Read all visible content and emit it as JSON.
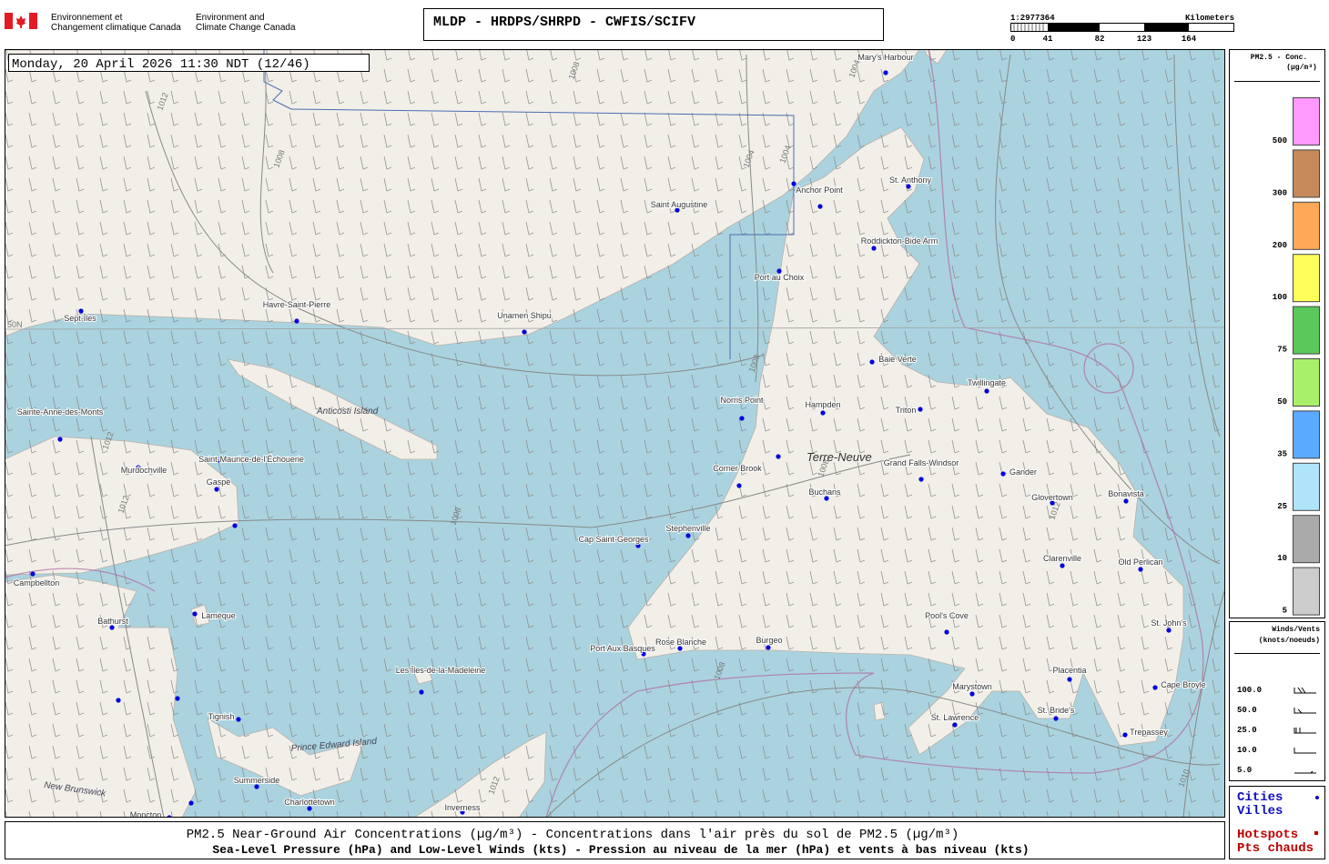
{
  "header": {
    "org_fr": [
      "Environnement et",
      "Changement climatique Canada"
    ],
    "org_en": [
      "Environment and",
      "Climate Change Canada"
    ],
    "title": "MLDP - HRDPS/SHRPD - CWFIS/SCIFV"
  },
  "scale": {
    "ratio": "1:2977364",
    "unit": "Kilometers",
    "ticks": [
      "0",
      "41",
      "82",
      "123",
      "164"
    ]
  },
  "map": {
    "date": "Monday, 20 April 2026 11:30 NDT (12/46)",
    "lat_label": "50N",
    "regions": [
      "Anticosti Island",
      "Terre-Neuve",
      "Prince Edward Island",
      "New Brunswick"
    ],
    "isobar_labels": [
      "1008",
      "1012",
      "1004",
      "1004",
      "1004",
      "1008",
      "1008",
      "1008",
      "1012",
      "1012",
      "1008",
      "1012",
      "1008",
      "1012",
      "1010"
    ],
    "cities": [
      "Sept-Îles",
      "Havre-Saint-Pierre",
      "Unamen Shipu",
      "Saint Augustine",
      "Anchor Point",
      "Mary's Harbour",
      "St. Anthony",
      "Roddickton-Bide Arm",
      "Port au Choix",
      "Baie Verte",
      "Twillingate",
      "Norris Point",
      "Hampden",
      "Triton",
      "Corner Brook",
      "Grand Falls-Windsor",
      "Gander",
      "Buchans",
      "Glovertown",
      "Bonavista",
      "Stephenville",
      "Cap Saint-Georges",
      "Clarenville",
      "Old Perlican",
      "St. John's",
      "Pool's Cove",
      "Port Aux Basques",
      "Rose Blanche",
      "Burgeo",
      "Marystown",
      "Placentia",
      "Cape Broyle",
      "St. Lawrence",
      "St. Bride's",
      "Trepassey",
      "Sainte-Anne-des-Monts",
      "Murdochville",
      "Saint-Maurice-de-l'Échouerie",
      "Gaspé",
      "Campbellton",
      "Bathurst",
      "Lamèque",
      "Les Îles-de-la-Madeleine",
      "Tignish",
      "Summerside",
      "Charlottetown",
      "Inverness",
      "Moncton"
    ]
  },
  "legend": {
    "title": [
      "PM2.5 - Conc.",
      "(µg/m³)"
    ],
    "levels": [
      {
        "label": "500",
        "color": "#ff99ff"
      },
      {
        "label": "300",
        "color": "#c68a5a"
      },
      {
        "label": "200",
        "color": "#ffa858"
      },
      {
        "label": "100",
        "color": "#ffff5a"
      },
      {
        "label": "75",
        "color": "#5ac85a"
      },
      {
        "label": "50",
        "color": "#a8f06a"
      },
      {
        "label": "35",
        "color": "#5aaaff"
      },
      {
        "label": "25",
        "color": "#b0e4fa"
      },
      {
        "label": "10",
        "color": "#aaaaaa"
      },
      {
        "label": "5",
        "color": "#cccccc"
      }
    ]
  },
  "wind_legend": {
    "title": [
      "Winds/Vents",
      "(knots/noeuds)"
    ],
    "entries": [
      "100.0",
      "50.0",
      "25.0",
      "10.0",
      "5.0"
    ]
  },
  "key": {
    "cities": [
      "Cities",
      "Villes"
    ],
    "hotspots": [
      "Hotspots",
      "Pts chauds"
    ]
  },
  "footer": [
    "PM2.5 Near-Ground Air Concentrations (µg/m³) - Concentrations dans l'air près du sol de PM2.5 (µg/m³)",
    "Sea-Level Pressure (hPa) and Low-Level Winds (kts) - Pression au niveau de la mer (hPa) et vents à bas niveau (kts)"
  ]
}
